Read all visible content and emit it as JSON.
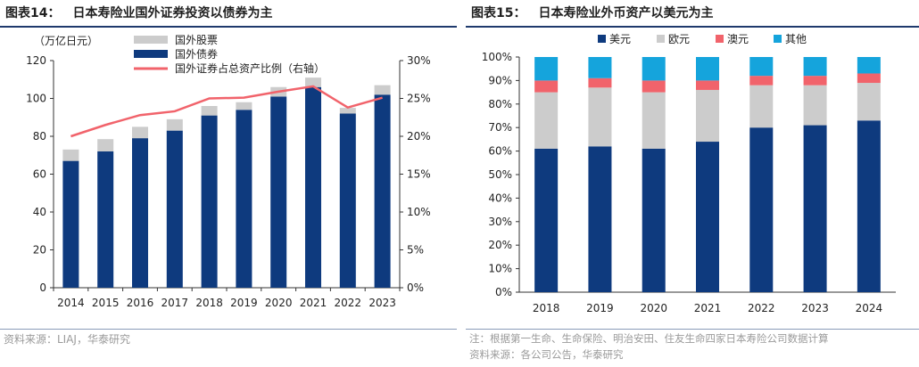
{
  "left": {
    "title_label": "图表14：",
    "title": "日本寿险业国外证券投资以债券为主",
    "unit_label": "（万亿日元）",
    "source": "资料来源：LIAJ，华泰研究"
  },
  "right": {
    "title_label": "图表15：",
    "title": "日本寿险业外币资产以美元为主",
    "note": "注：根据第一生命、生命保险、明治安田、住友生命四家日本寿险公司数据计算",
    "source": "资料来源：各公司公告，华泰研究"
  },
  "colors": {
    "navy": "#0e3a7e",
    "gray": "#cccccc",
    "red": "#f1636b",
    "blue": "#15a4dc"
  },
  "chart_data": [
    {
      "type": "bar",
      "stacked": true,
      "categories": [
        "2014",
        "2015",
        "2016",
        "2017",
        "2018",
        "2019",
        "2020",
        "2021",
        "2022",
        "2023"
      ],
      "series": [
        {
          "name": "国外债券",
          "values": [
            67,
            72,
            79,
            83,
            91,
            94,
            101,
            106,
            92,
            102
          ],
          "color": "navy"
        },
        {
          "name": "国外股票",
          "values": [
            6,
            6.5,
            6,
            6,
            5,
            4,
            5,
            5,
            3,
            5
          ],
          "color": "gray"
        },
        {
          "name": "国外证券占总资产比例（右轴）",
          "type": "line",
          "axis": "right",
          "values": [
            20.0,
            21.5,
            22.8,
            23.3,
            25.0,
            25.1,
            25.9,
            26.6,
            23.8,
            25.1
          ],
          "color": "red"
        }
      ],
      "ylim": [
        0,
        120
      ],
      "yticks": [
        "0",
        "20",
        "40",
        "60",
        "80",
        "100",
        "120"
      ],
      "y2lim": [
        0,
        30
      ],
      "y2ticks": [
        "0%",
        "5%",
        "10%",
        "15%",
        "20%",
        "25%",
        "30%"
      ],
      "legend_position": "top-center",
      "grid": false
    },
    {
      "type": "bar",
      "stacked": true,
      "percent": true,
      "categories": [
        "2018",
        "2019",
        "2020",
        "2021",
        "2022",
        "2023",
        "2024"
      ],
      "series": [
        {
          "name": "美元",
          "values": [
            61,
            62,
            61,
            64,
            70,
            71,
            73
          ],
          "color": "navy"
        },
        {
          "name": "欧元",
          "values": [
            24,
            25,
            24,
            22,
            18,
            17,
            16
          ],
          "color": "gray"
        },
        {
          "name": "澳元",
          "values": [
            5,
            4,
            5,
            4,
            4,
            4,
            4
          ],
          "color": "red"
        },
        {
          "name": "其他",
          "values": [
            10,
            9,
            10,
            10,
            8,
            8,
            7
          ],
          "color": "blue"
        }
      ],
      "ylim": [
        0,
        100
      ],
      "yticks": [
        "0%",
        "10%",
        "20%",
        "30%",
        "40%",
        "50%",
        "60%",
        "70%",
        "80%",
        "90%",
        "100%"
      ],
      "legend_position": "top-center",
      "grid": false
    }
  ]
}
